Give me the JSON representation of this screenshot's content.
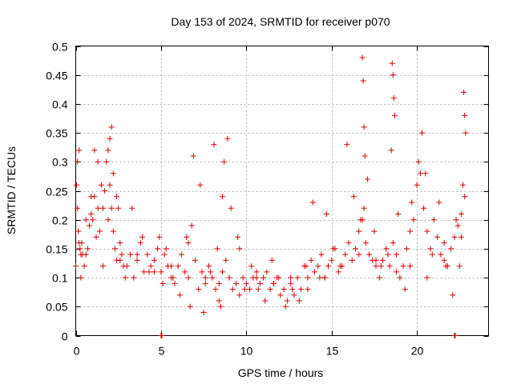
{
  "chart_data": {
    "type": "scatter",
    "title": "Day 153 of 2024, SRMTID for receiver p070",
    "xlabel": "GPS time / hours",
    "ylabel": "SRMTID / TECUs",
    "xlim": [
      0,
      24.2
    ],
    "ylim": [
      0,
      0.5
    ],
    "x_ticks": [
      0,
      5,
      10,
      15,
      20
    ],
    "x_tick_labels": [
      "0",
      "5",
      "10",
      "15",
      "20"
    ],
    "y_ticks": [
      0,
      0.05,
      0.1,
      0.15,
      0.2,
      0.25,
      0.3,
      0.35,
      0.4,
      0.45,
      0.5
    ],
    "y_tick_labels": [
      "0",
      "0.05",
      "0.1",
      "0.15",
      "0.2",
      "0.25",
      "0.3",
      "0.35",
      "0.4",
      "0.45",
      "0.5"
    ],
    "grid": true,
    "marker": "+",
    "color": "#e00000",
    "series": [
      {
        "name": "SRMTID",
        "x": [
          0.0,
          0.05,
          0.1,
          0.15,
          0.2,
          0.25,
          0.3,
          0.35,
          0.4,
          0.5,
          0.6,
          0.7,
          0.8,
          0.9,
          1.0,
          1.1,
          1.2,
          1.3,
          1.4,
          1.5,
          1.6,
          1.7,
          1.8,
          1.9,
          2.0,
          2.1,
          2.2,
          2.3,
          2.4,
          2.5,
          2.6,
          2.7,
          2.8,
          2.9,
          3.0,
          3.2,
          3.4,
          3.6,
          3.8,
          4.0,
          4.2,
          4.4,
          4.6,
          4.8,
          5.0,
          5.2,
          5.4,
          5.6,
          5.8,
          6.0,
          6.2,
          6.4,
          6.6,
          6.8,
          7.0,
          7.2,
          7.4,
          7.6,
          7.8,
          8.0,
          8.2,
          8.4,
          8.6,
          8.8,
          9.0,
          9.2,
          9.4,
          9.6,
          9.8,
          10.0,
          10.2,
          10.4,
          10.6,
          10.8,
          11.0,
          11.2,
          11.4,
          11.6,
          11.8,
          12.0,
          12.2,
          12.4,
          12.6,
          12.8,
          13.0,
          13.2,
          13.4,
          13.6,
          13.8,
          14.0,
          14.2,
          14.4,
          14.6,
          14.8,
          15.0,
          15.2,
          15.4,
          15.6,
          15.8,
          16.0,
          16.2,
          16.4,
          16.6,
          16.8,
          16.9,
          17.0,
          17.2,
          17.4,
          17.6,
          17.8,
          18.0,
          18.2,
          18.4,
          18.6,
          18.8,
          19.0,
          19.2,
          19.4,
          19.6,
          19.8,
          20.0,
          20.2,
          20.4,
          20.6,
          20.8,
          21.0,
          21.2,
          21.4,
          21.6,
          21.8,
          22.0,
          22.2,
          22.4,
          22.6,
          22.8,
          0.1,
          0.3,
          0.9,
          1.1,
          1.3,
          1.9,
          2.0,
          2.1,
          2.2,
          2.4,
          3.3,
          3.9,
          4.3,
          4.9,
          5.1,
          5.3,
          5.7,
          6.1,
          6.5,
          6.7,
          6.9,
          7.3,
          7.5,
          7.9,
          8.1,
          8.3,
          8.5,
          8.6,
          8.7,
          8.9,
          9.1,
          9.5,
          9.9,
          10.3,
          10.7,
          11.1,
          11.5,
          11.9,
          12.3,
          12.7,
          13.1,
          13.5,
          13.9,
          14.3,
          14.7,
          15.1,
          15.5,
          15.9,
          16.3,
          16.7,
          16.8,
          16.85,
          16.9,
          16.95,
          17.1,
          17.5,
          17.9,
          18.3,
          18.5,
          18.55,
          18.6,
          18.65,
          18.7,
          18.9,
          19.3,
          19.7,
          20.1,
          20.3,
          20.5,
          20.9,
          21.3,
          21.7,
          22.1,
          22.3,
          22.5,
          22.7,
          22.75,
          22.8,
          22.85,
          0.2,
          0.6,
          1.6,
          2.6,
          3.6,
          4.6,
          5.6,
          6.6,
          7.6,
          8.4,
          9.6,
          10.6,
          11.6,
          12.6,
          13.6,
          14.6,
          15.6,
          16.6,
          17.6,
          18.8,
          19.6,
          20.6,
          21.6,
          22.6,
          5.0,
          5.05,
          22.2,
          22.25
        ],
        "y": [
          0.12,
          0.26,
          0.22,
          0.18,
          0.32,
          0.15,
          0.1,
          0.16,
          0.14,
          0.12,
          0.14,
          0.15,
          0.19,
          0.21,
          0.2,
          0.24,
          0.17,
          0.22,
          0.18,
          0.26,
          0.22,
          0.25,
          0.3,
          0.32,
          0.26,
          0.22,
          0.18,
          0.15,
          0.13,
          0.22,
          0.16,
          0.14,
          0.12,
          0.1,
          0.12,
          0.14,
          0.1,
          0.13,
          0.16,
          0.11,
          0.14,
          0.12,
          0.13,
          0.15,
          0.11,
          0.14,
          0.12,
          0.1,
          0.09,
          0.12,
          0.14,
          0.11,
          0.16,
          0.19,
          0.13,
          0.08,
          0.11,
          0.09,
          0.12,
          0.1,
          0.08,
          0.06,
          0.11,
          0.13,
          0.1,
          0.08,
          0.09,
          0.07,
          0.1,
          0.09,
          0.08,
          0.1,
          0.11,
          0.09,
          0.1,
          0.11,
          0.08,
          0.09,
          0.1,
          0.07,
          0.08,
          0.06,
          0.09,
          0.07,
          0.1,
          0.08,
          0.12,
          0.1,
          0.13,
          0.11,
          0.12,
          0.14,
          0.1,
          0.12,
          0.13,
          0.15,
          0.11,
          0.12,
          0.14,
          0.16,
          0.13,
          0.15,
          0.18,
          0.2,
          0.22,
          0.16,
          0.14,
          0.13,
          0.12,
          0.1,
          0.13,
          0.15,
          0.12,
          0.16,
          0.14,
          0.1,
          0.12,
          0.15,
          0.18,
          0.2,
          0.26,
          0.28,
          0.22,
          0.18,
          0.15,
          0.2,
          0.17,
          0.14,
          0.13,
          0.12,
          0.15,
          0.17,
          0.19,
          0.21,
          0.24,
          0.3,
          0.14,
          0.24,
          0.32,
          0.3,
          0.2,
          0.34,
          0.36,
          0.28,
          0.24,
          0.22,
          0.17,
          0.11,
          0.17,
          0.09,
          0.15,
          0.1,
          0.07,
          0.17,
          0.05,
          0.31,
          0.26,
          0.04,
          0.11,
          0.33,
          0.15,
          0.05,
          0.24,
          0.3,
          0.34,
          0.22,
          0.17,
          0.08,
          0.12,
          0.08,
          0.06,
          0.13,
          0.1,
          0.05,
          0.08,
          0.06,
          0.12,
          0.23,
          0.1,
          0.21,
          0.15,
          0.12,
          0.33,
          0.24,
          0.2,
          0.48,
          0.44,
          0.36,
          0.31,
          0.27,
          0.18,
          0.12,
          0.14,
          0.32,
          0.47,
          0.45,
          0.41,
          0.38,
          0.21,
          0.08,
          0.23,
          0.3,
          0.35,
          0.28,
          0.14,
          0.23,
          0.12,
          0.07,
          0.2,
          0.12,
          0.26,
          0.42,
          0.38,
          0.35,
          0.16,
          0.2,
          0.12,
          0.13,
          0.14,
          0.11,
          0.12,
          0.1,
          0.1,
          0.09,
          0.15,
          0.1,
          0.09,
          0.1,
          0.08,
          0.1,
          0.12,
          0.14,
          0.13,
          0.11,
          0.12,
          0.1,
          0.16,
          0.17,
          0.0,
          0.0,
          0.0,
          0.0
        ]
      }
    ]
  }
}
